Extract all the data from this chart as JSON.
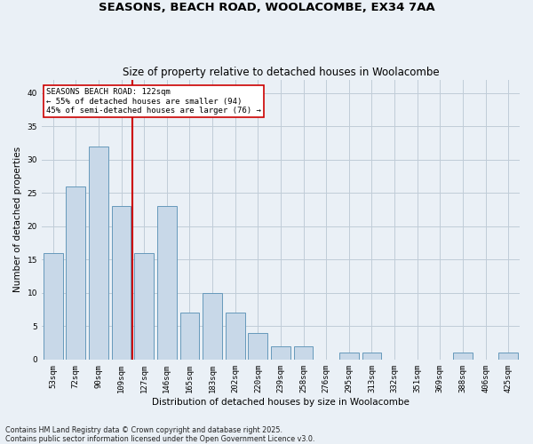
{
  "title": "SEASONS, BEACH ROAD, WOOLACOMBE, EX34 7AA",
  "subtitle": "Size of property relative to detached houses in Woolacombe",
  "xlabel": "Distribution of detached houses by size in Woolacombe",
  "ylabel": "Number of detached properties",
  "categories": [
    "53sqm",
    "72sqm",
    "90sqm",
    "109sqm",
    "127sqm",
    "146sqm",
    "165sqm",
    "183sqm",
    "202sqm",
    "220sqm",
    "239sqm",
    "258sqm",
    "276sqm",
    "295sqm",
    "313sqm",
    "332sqm",
    "351sqm",
    "369sqm",
    "388sqm",
    "406sqm",
    "425sqm"
  ],
  "values": [
    16,
    26,
    32,
    23,
    16,
    23,
    7,
    10,
    7,
    4,
    2,
    2,
    0,
    1,
    1,
    0,
    0,
    0,
    1,
    0,
    1
  ],
  "bar_color": "#c8d8e8",
  "bar_edge_color": "#6699bb",
  "vline_x": 3.5,
  "vline_color": "#cc0000",
  "annotation_text": "SEASONS BEACH ROAD: 122sqm\n← 55% of detached houses are smaller (94)\n45% of semi-detached houses are larger (76) →",
  "annotation_box_color": "#ffffff",
  "annotation_box_edge": "#cc0000",
  "ylim": [
    0,
    42
  ],
  "yticks": [
    0,
    5,
    10,
    15,
    20,
    25,
    30,
    35,
    40
  ],
  "grid_color": "#c0ccd8",
  "background_color": "#eaf0f6",
  "footer": "Contains HM Land Registry data © Crown copyright and database right 2025.\nContains public sector information licensed under the Open Government Licence v3.0.",
  "title_fontsize": 9.5,
  "subtitle_fontsize": 8.5,
  "label_fontsize": 7.5,
  "tick_fontsize": 6.5,
  "annotation_fontsize": 6.5,
  "footer_fontsize": 5.8
}
